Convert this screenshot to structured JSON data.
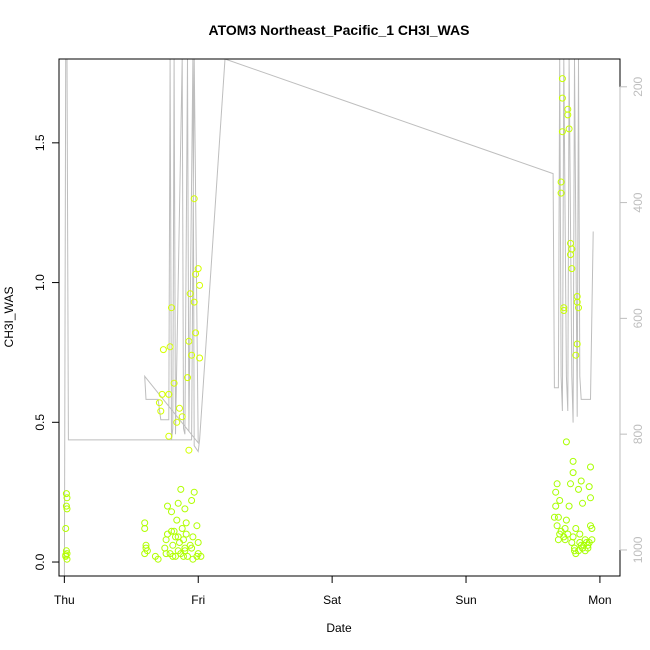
{
  "chart_data": {
    "type": "scatter",
    "title": "ATOM3 Northeast_Pacific_1 CH3I_WAS",
    "xlabel": "Date",
    "ylabel": "CH3I_WAS",
    "x_ticks": [
      "Thu",
      "Fri",
      "Sat",
      "Sun",
      "Mon"
    ],
    "y_ticks": [
      "0.0",
      "0.5",
      "1.0",
      "1.5"
    ],
    "y2_ticks": [
      "200",
      "400",
      "600",
      "800",
      "1000"
    ],
    "xlim": [
      -0.04,
      4.15
    ],
    "ylim": [
      -0.05,
      1.8
    ],
    "y2lim": [
      1045,
      152
    ],
    "grid": false,
    "colors": {
      "secondary_line": "#bebebe",
      "axis_right": "#bebebe"
    },
    "series": [
      {
        "kind": "points",
        "points": [
          [
            0.01,
            0.02,
            "#b5ff00"
          ],
          [
            0.02,
            0.03,
            "#b5ff00"
          ],
          [
            0.015,
            0.04,
            "#b5ff00"
          ],
          [
            0.02,
            0.01,
            "#b5ff00"
          ],
          [
            0.01,
            0.025,
            "#b5ff00"
          ],
          [
            0.01,
            0.12,
            "#b5ff00"
          ],
          [
            0.02,
            0.19,
            "#b5ff00"
          ],
          [
            0.015,
            0.2,
            "#b5ff00"
          ],
          [
            0.02,
            0.23,
            "#b5ff00"
          ],
          [
            0.015,
            0.245,
            "#b5ff00"
          ],
          [
            0.6,
            0.14,
            "#b0ff00"
          ],
          [
            0.6,
            0.12,
            "#b0ff00"
          ],
          [
            0.61,
            0.06,
            "#b0ff00"
          ],
          [
            0.62,
            0.04,
            "#b0ff00"
          ],
          [
            0.6,
            0.03,
            "#b0ff00"
          ],
          [
            0.61,
            0.05,
            "#b0ff00"
          ],
          [
            0.68,
            0.02,
            "#b0ff00"
          ],
          [
            0.7,
            0.01,
            "#b0ff00"
          ],
          [
            0.71,
            0.57,
            "#d4ff00"
          ],
          [
            0.72,
            0.54,
            "#d4ff00"
          ],
          [
            0.73,
            0.6,
            "#d4ff00"
          ],
          [
            0.74,
            0.76,
            "#d4ff00"
          ],
          [
            0.75,
            0.05,
            "#b0ff00"
          ],
          [
            0.76,
            0.08,
            "#b0ff00"
          ],
          [
            0.77,
            0.1,
            "#b0ff00"
          ],
          [
            0.77,
            0.2,
            "#b0ff00"
          ],
          [
            0.78,
            0.45,
            "#d4ff00"
          ],
          [
            0.78,
            0.6,
            "#d4ff00"
          ],
          [
            0.79,
            0.03,
            "#b0ff00"
          ],
          [
            0.79,
            0.77,
            "#d4ff00"
          ],
          [
            0.8,
            0.91,
            "#d4ff00"
          ],
          [
            0.8,
            0.18,
            "#b0ff00"
          ],
          [
            0.81,
            0.02,
            "#b0ff00"
          ],
          [
            0.81,
            0.06,
            "#b0ff00"
          ],
          [
            0.82,
            0.11,
            "#b0ff00"
          ],
          [
            0.82,
            0.64,
            "#d4ff00"
          ],
          [
            0.83,
            0.02,
            "#b0ff00"
          ],
          [
            0.83,
            0.09,
            "#b0ff00"
          ],
          [
            0.84,
            0.5,
            "#d4ff00"
          ],
          [
            0.84,
            0.15,
            "#b0ff00"
          ],
          [
            0.85,
            0.04,
            "#b0ff00"
          ],
          [
            0.85,
            0.21,
            "#b0ff00"
          ],
          [
            0.86,
            0.07,
            "#b0ff00"
          ],
          [
            0.86,
            0.55,
            "#d4ff00"
          ],
          [
            0.87,
            0.03,
            "#b0ff00"
          ],
          [
            0.87,
            0.26,
            "#b0ff00"
          ],
          [
            0.88,
            0.12,
            "#b0ff00"
          ],
          [
            0.88,
            0.52,
            "#d4ff00"
          ],
          [
            0.89,
            0.02,
            "#b0ff00"
          ],
          [
            0.89,
            0.08,
            "#b0ff00"
          ],
          [
            0.9,
            0.05,
            "#b0ff00"
          ],
          [
            0.9,
            0.19,
            "#b0ff00"
          ],
          [
            0.91,
            0.1,
            "#b0ff00"
          ],
          [
            0.91,
            0.14,
            "#b0ff00"
          ],
          [
            0.92,
            0.02,
            "#b0ff00"
          ],
          [
            0.92,
            0.66,
            "#d4ff00"
          ],
          [
            0.93,
            0.4,
            "#d4ff00"
          ],
          [
            0.93,
            0.79,
            "#d4ff00"
          ],
          [
            0.94,
            0.06,
            "#b0ff00"
          ],
          [
            0.94,
            0.96,
            "#d4ff00"
          ],
          [
            0.95,
            0.22,
            "#b0ff00"
          ],
          [
            0.95,
            0.74,
            "#d4ff00"
          ],
          [
            0.96,
            0.01,
            "#b0ff00"
          ],
          [
            0.96,
            0.09,
            "#b0ff00"
          ],
          [
            0.97,
            0.93,
            "#d4ff00"
          ],
          [
            0.97,
            1.3,
            "#d4ff00"
          ],
          [
            0.98,
            1.03,
            "#d4ff00"
          ],
          [
            0.98,
            0.82,
            "#d4ff00"
          ],
          [
            0.99,
            0.02,
            "#b0ff00"
          ],
          [
            0.99,
            0.13,
            "#b0ff00"
          ],
          [
            1.0,
            0.03,
            "#b0ff00"
          ],
          [
            1.0,
            1.05,
            "#d4ff00"
          ],
          [
            1.01,
            0.99,
            "#d4ff00"
          ],
          [
            1.01,
            0.73,
            "#d4ff00"
          ],
          [
            0.97,
            0.25,
            "#b0ff00"
          ],
          [
            1.0,
            0.07,
            "#b0ff00"
          ],
          [
            0.76,
            0.03,
            "#b0ff00"
          ],
          [
            0.8,
            0.11,
            "#b0ff00"
          ],
          [
            0.85,
            0.09,
            "#b0ff00"
          ],
          [
            0.9,
            0.04,
            "#b0ff00"
          ],
          [
            0.95,
            0.05,
            "#b0ff00"
          ],
          [
            1.02,
            0.02,
            "#b0ff00"
          ],
          [
            3.66,
            0.16,
            "#a8ff00"
          ],
          [
            3.67,
            0.2,
            "#a8ff00"
          ],
          [
            3.67,
            0.25,
            "#a8ff00"
          ],
          [
            3.68,
            0.28,
            "#a8ff00"
          ],
          [
            3.68,
            0.13,
            "#a8ff00"
          ],
          [
            3.69,
            0.16,
            "#a8ff00"
          ],
          [
            3.7,
            0.22,
            "#a8ff00"
          ],
          [
            3.7,
            0.1,
            "#a8ff00"
          ],
          [
            3.71,
            1.32,
            "#c8ff00"
          ],
          [
            3.71,
            1.36,
            "#c8ff00"
          ],
          [
            3.72,
            1.54,
            "#c8ff00"
          ],
          [
            3.72,
            1.66,
            "#c8ff00"
          ],
          [
            3.72,
            1.73,
            "#c8ff00"
          ],
          [
            3.73,
            0.91,
            "#c8ff00"
          ],
          [
            3.73,
            0.9,
            "#c8ff00"
          ],
          [
            3.74,
            0.12,
            "#a8ff00"
          ],
          [
            3.74,
            0.08,
            "#a8ff00"
          ],
          [
            3.75,
            0.15,
            "#a8ff00"
          ],
          [
            3.75,
            0.43,
            "#a8ff00"
          ],
          [
            3.76,
            1.62,
            "#c8ff00"
          ],
          [
            3.76,
            1.6,
            "#c8ff00"
          ],
          [
            3.77,
            1.55,
            "#c8ff00"
          ],
          [
            3.77,
            0.2,
            "#a8ff00"
          ],
          [
            3.78,
            0.28,
            "#a8ff00"
          ],
          [
            3.78,
            1.14,
            "#c8ff00"
          ],
          [
            3.78,
            1.1,
            "#c8ff00"
          ],
          [
            3.79,
            1.12,
            "#c8ff00"
          ],
          [
            3.79,
            1.05,
            "#c8ff00"
          ],
          [
            3.8,
            0.32,
            "#a8ff00"
          ],
          [
            3.8,
            0.36,
            "#a8ff00"
          ],
          [
            3.81,
            0.05,
            "#a8ff00"
          ],
          [
            3.81,
            0.04,
            "#a8ff00"
          ],
          [
            3.82,
            0.03,
            "#a8ff00"
          ],
          [
            3.82,
            0.74,
            "#c8ff00"
          ],
          [
            3.83,
            0.78,
            "#c8ff00"
          ],
          [
            3.83,
            0.95,
            "#c8ff00"
          ],
          [
            3.83,
            0.93,
            "#c8ff00"
          ],
          [
            3.84,
            0.91,
            "#c8ff00"
          ],
          [
            3.84,
            0.26,
            "#a8ff00"
          ],
          [
            3.85,
            0.07,
            "#a8ff00"
          ],
          [
            3.85,
            0.1,
            "#a8ff00"
          ],
          [
            3.86,
            0.06,
            "#a8ff00"
          ],
          [
            3.86,
            0.29,
            "#a8ff00"
          ],
          [
            3.87,
            0.21,
            "#a8ff00"
          ],
          [
            3.88,
            0.06,
            "#a8ff00"
          ],
          [
            3.89,
            0.08,
            "#a8ff00"
          ],
          [
            3.9,
            0.07,
            "#a8ff00"
          ],
          [
            3.91,
            0.05,
            "#a8ff00"
          ],
          [
            3.92,
            0.27,
            "#a8ff00"
          ],
          [
            3.93,
            0.34,
            "#a8ff00"
          ],
          [
            3.93,
            0.23,
            "#a8ff00"
          ],
          [
            3.93,
            0.13,
            "#a8ff00"
          ],
          [
            3.94,
            0.12,
            "#a8ff00"
          ],
          [
            3.94,
            0.08,
            "#a8ff00"
          ],
          [
            3.69,
            0.08,
            "#a8ff00"
          ],
          [
            3.71,
            0.11,
            "#a8ff00"
          ],
          [
            3.73,
            0.09,
            "#a8ff00"
          ],
          [
            3.76,
            0.1,
            "#a8ff00"
          ],
          [
            3.79,
            0.07,
            "#a8ff00"
          ],
          [
            3.8,
            0.09,
            "#a8ff00"
          ],
          [
            3.82,
            0.12,
            "#a8ff00"
          ],
          [
            3.84,
            0.04,
            "#a8ff00"
          ],
          [
            3.87,
            0.05,
            "#a8ff00"
          ],
          [
            3.89,
            0.04,
            "#a8ff00"
          ],
          [
            3.91,
            0.06,
            "#a8ff00"
          ],
          [
            3.92,
            0.07,
            "#a8ff00"
          ]
        ]
      },
      {
        "kind": "line",
        "axis": "right",
        "color": "#bebebe",
        "points": [
          [
            0.0,
            1045
          ],
          [
            0.01,
            152
          ],
          [
            0.02,
            152
          ],
          [
            0.03,
            810
          ],
          [
            0.95,
            810
          ],
          [
            0.97,
            152
          ],
          [
            1.0,
            815
          ],
          [
            0.6,
            700
          ],
          [
            0.61,
            740
          ],
          [
            0.7,
            740
          ],
          [
            0.72,
            775
          ],
          [
            0.78,
            775
          ],
          [
            0.79,
            152
          ],
          [
            0.8,
            810
          ],
          [
            0.81,
            790
          ],
          [
            0.82,
            152
          ],
          [
            0.83,
            800
          ],
          [
            0.88,
            152
          ],
          [
            0.89,
            790
          ],
          [
            0.9,
            800
          ],
          [
            0.92,
            152
          ],
          [
            0.93,
            795
          ],
          [
            0.96,
            152
          ],
          [
            0.97,
            820
          ],
          [
            1.0,
            830
          ],
          [
            1.01,
            810
          ],
          [
            1.2,
            152
          ],
          [
            3.65,
            350
          ],
          [
            3.66,
            720
          ],
          [
            3.69,
            720
          ],
          [
            3.7,
            152
          ],
          [
            3.71,
            700
          ],
          [
            3.72,
            760
          ],
          [
            3.73,
            152
          ],
          [
            3.75,
            700
          ],
          [
            3.76,
            760
          ],
          [
            3.77,
            152
          ],
          [
            3.79,
            700
          ],
          [
            3.8,
            780
          ],
          [
            3.81,
            152
          ],
          [
            3.83,
            770
          ],
          [
            3.84,
            152
          ],
          [
            3.85,
            700
          ],
          [
            3.86,
            740
          ],
          [
            3.93,
            740
          ],
          [
            3.95,
            450
          ]
        ]
      }
    ]
  }
}
